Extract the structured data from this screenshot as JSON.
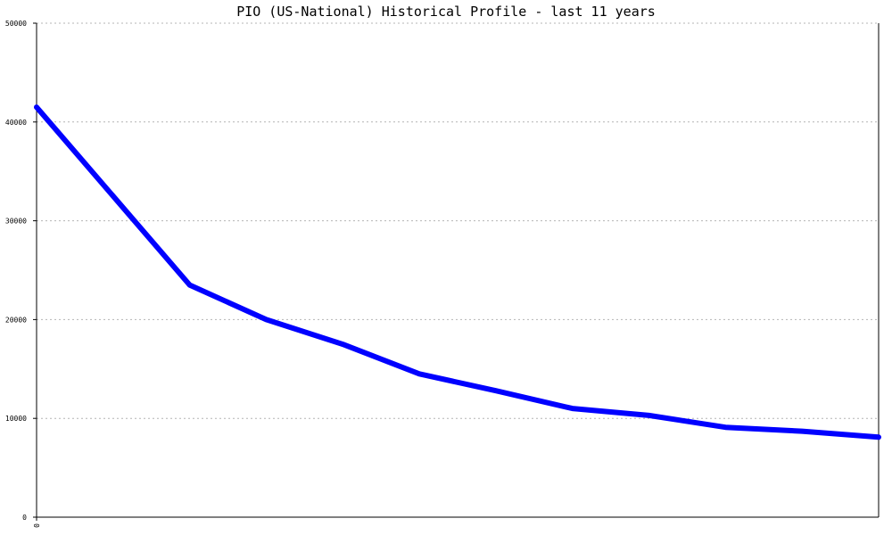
{
  "chart_data": {
    "type": "line",
    "title": "PIO (US-National) Historical Profile - last 11 years",
    "xlabel": "",
    "ylabel": "",
    "x_tick_labels": [
      "0"
    ],
    "y_ticks": [
      0,
      10000,
      20000,
      30000,
      40000,
      50000
    ],
    "y_tick_labels": [
      "0",
      "10000",
      "20000",
      "30000",
      "40000",
      "50000"
    ],
    "ylim": [
      0,
      50000
    ],
    "grid": true,
    "legend": "none",
    "series": [
      {
        "color": "#0000ff",
        "x": [
          0,
          2,
          3,
          4,
          5,
          6,
          7,
          8,
          9,
          10,
          11
        ],
        "values": [
          41500,
          23500,
          20000,
          17500,
          14500,
          12800,
          11000,
          10300,
          9100,
          8700,
          8100
        ]
      }
    ]
  }
}
